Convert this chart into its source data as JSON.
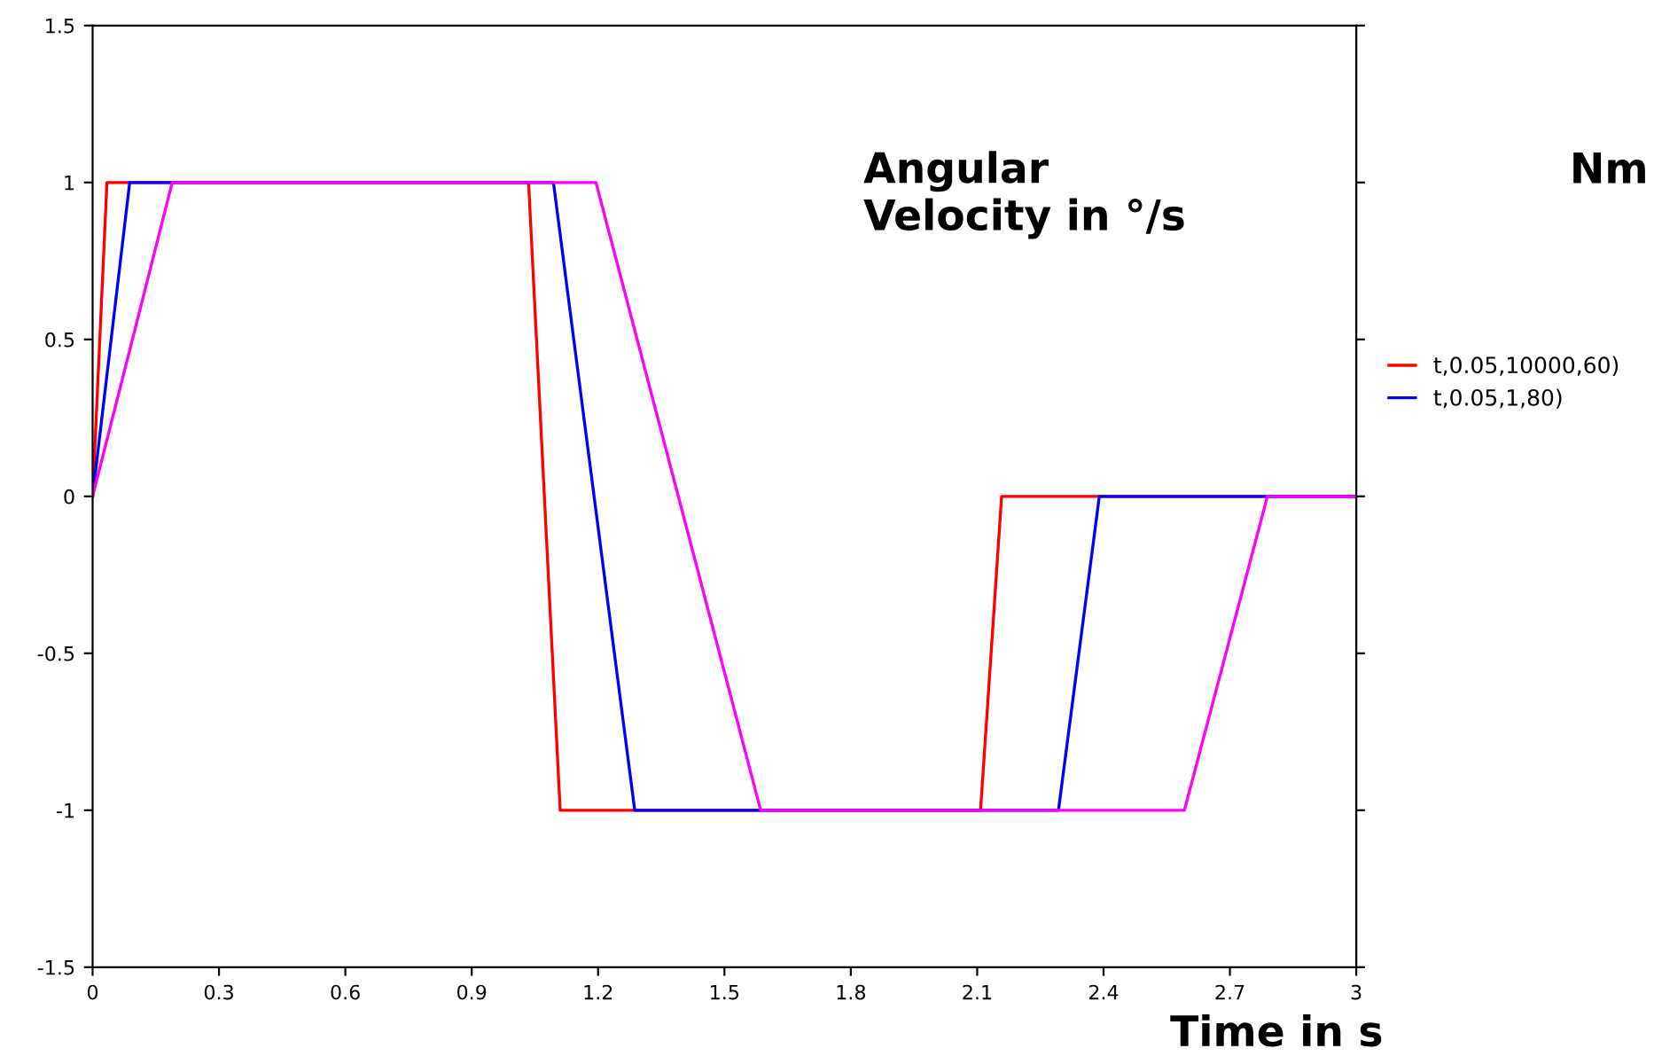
{
  "chart_data": {
    "type": "line",
    "xlabel": "Time in s",
    "ylabel": "Angular\nVelocity in °/s",
    "annotations": [
      "Nm"
    ],
    "xlim": [
      0,
      3
    ],
    "xticks": [
      0,
      0.3,
      0.6,
      0.9,
      1.2,
      1.5,
      1.8,
      2.1,
      2.4,
      2.7,
      3
    ],
    "ylim": [
      -1.5,
      1.5
    ],
    "yticks": [
      -1.5,
      -1,
      -0.5,
      0,
      0.5,
      1,
      1.5
    ],
    "grid": false,
    "legend": "right",
    "marker": "none",
    "line_style": "solid",
    "series": [
      {
        "name": "t,0.05,10000,60)",
        "color": "#ff0000",
        "x": [
          0,
          0.034,
          1.035,
          1.11,
          2.108,
          2.158,
          3
        ],
        "values": [
          0,
          1,
          1,
          -1,
          -1,
          0,
          0
        ]
      },
      {
        "name": "t,0.05,1,80)",
        "color": "#0000ff",
        "x": [
          0,
          0.088,
          1.094,
          1.287,
          2.293,
          2.39,
          3
        ],
        "values": [
          0,
          1,
          1,
          -1,
          -1,
          0,
          0
        ]
      },
      {
        "color": "#ff00ff",
        "x": [
          0,
          0.189,
          1.195,
          1.586,
          2.592,
          2.789,
          3
        ],
        "values": [
          0,
          1,
          1,
          -1,
          -1,
          0,
          0
        ]
      }
    ]
  }
}
